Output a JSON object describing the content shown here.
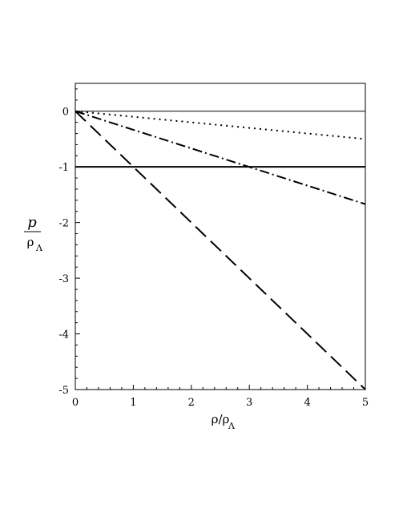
{
  "chart_data": {
    "type": "line",
    "title": "",
    "xlabel": "ρ/ρ",
    "xlabel_sub": "Λ",
    "ylabel_num": "p",
    "ylabel_den": "ρ",
    "ylabel_den_sub": "Λ",
    "xlim": [
      0,
      5
    ],
    "ylim": [
      -5,
      0.5
    ],
    "xticks": [
      0,
      1,
      2,
      3,
      4,
      5
    ],
    "yticks": [
      0,
      -1,
      -2,
      -3,
      -4,
      -5
    ],
    "grid": false,
    "legend": "none",
    "series": [
      {
        "style": "dotted",
        "x": [
          0,
          5
        ],
        "y": [
          0,
          -0.5
        ]
      },
      {
        "style": "dashdot",
        "x": [
          0,
          5
        ],
        "y": [
          0,
          -1.67
        ]
      },
      {
        "style": "dashed",
        "x": [
          0,
          5
        ],
        "y": [
          0,
          -5
        ]
      },
      {
        "style": "solid",
        "x": [
          0,
          5
        ],
        "y": [
          -1,
          -1
        ]
      }
    ],
    "zero_line": 0
  }
}
